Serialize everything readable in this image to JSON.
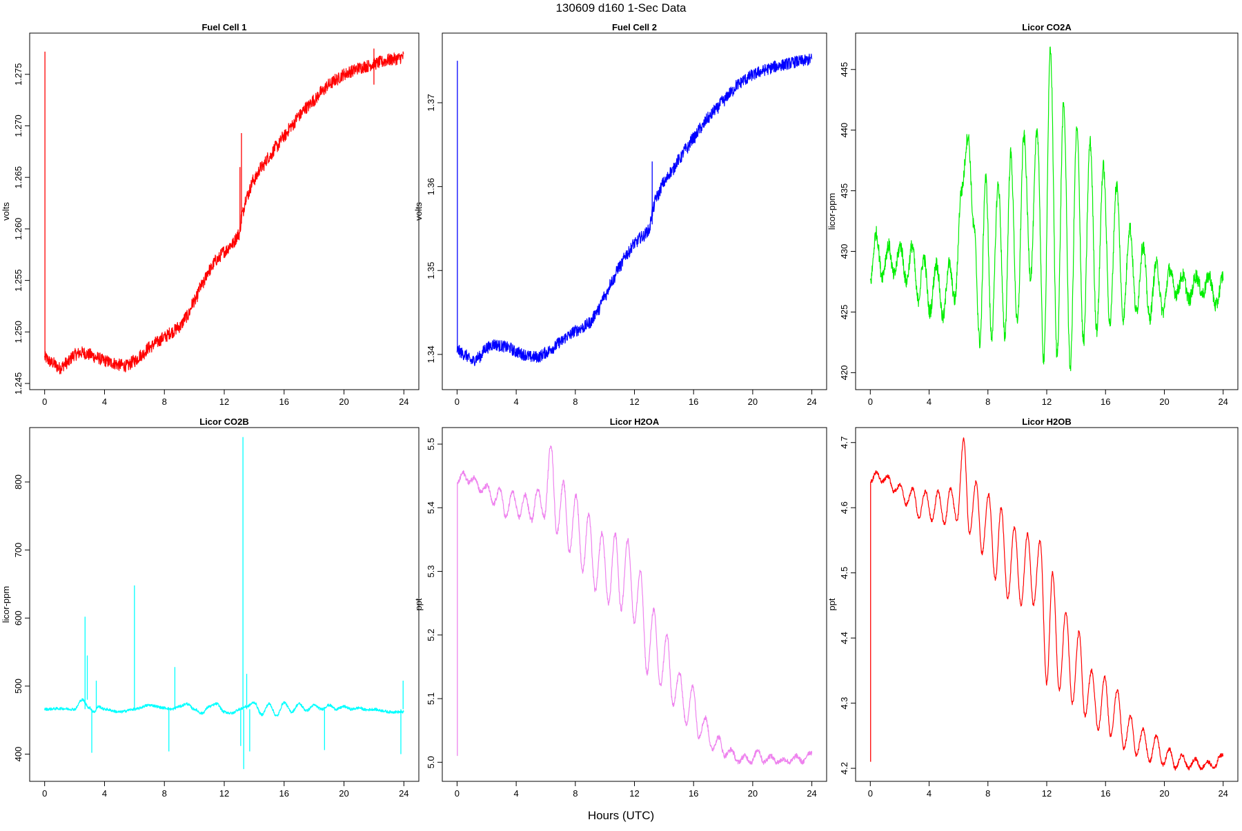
{
  "figure": {
    "title": "130609   d160   1-Sec Data",
    "xlabel": "Hours (UTC)"
  },
  "chart_data": [
    {
      "type": "line",
      "title": "Fuel Cell 1",
      "ylabel": "volts",
      "color": "#ff0000",
      "xlim": [
        -1.0,
        25.0
      ],
      "ylim": [
        1.2444,
        1.279
      ],
      "xticks": [
        0,
        4,
        8,
        12,
        16,
        20,
        24
      ],
      "yticks": [
        1.245,
        1.25,
        1.255,
        1.26,
        1.265,
        1.27,
        1.275
      ],
      "ytick_labels": [
        "1.245",
        "1.250",
        "1.255",
        "1.260",
        "1.265",
        "1.270",
        "1.275"
      ],
      "noise": 0.0006,
      "x": [
        0,
        0.5,
        1,
        1.5,
        2,
        2.5,
        3,
        3.5,
        4,
        4.5,
        5,
        5.5,
        6,
        6.5,
        7,
        7.5,
        8,
        8.5,
        9,
        9.5,
        10,
        10.5,
        11,
        11.5,
        12,
        12.5,
        13,
        13.2,
        13.5,
        14,
        14.5,
        15,
        15.5,
        16,
        16.5,
        17,
        17.5,
        18,
        18.5,
        19,
        19.5,
        20,
        20.5,
        21,
        21.5,
        22,
        22.5,
        23,
        23.5,
        24
      ],
      "y": [
        1.2475,
        1.247,
        1.2465,
        1.247,
        1.2478,
        1.248,
        1.2478,
        1.2475,
        1.2472,
        1.247,
        1.2468,
        1.2467,
        1.2472,
        1.2478,
        1.2485,
        1.249,
        1.2495,
        1.25,
        1.2505,
        1.2515,
        1.253,
        1.2545,
        1.256,
        1.257,
        1.2578,
        1.2585,
        1.2595,
        1.2615,
        1.2632,
        1.2648,
        1.266,
        1.267,
        1.268,
        1.269,
        1.27,
        1.271,
        1.2718,
        1.2725,
        1.2733,
        1.274,
        1.2745,
        1.275,
        1.2753,
        1.2756,
        1.2758,
        1.276,
        1.2762,
        1.2764,
        1.2765,
        1.2767
      ],
      "spikes": [
        {
          "x": 0.02,
          "y0": 1.2475,
          "y1": 1.2772
        },
        {
          "x": 13.15,
          "y0": 1.2605,
          "y1": 1.2693
        },
        {
          "x": 13.05,
          "y0": 1.26,
          "y1": 1.266
        },
        {
          "x": 22.0,
          "y0": 1.274,
          "y1": 1.2775
        }
      ]
    },
    {
      "type": "line",
      "title": "Fuel Cell 2",
      "ylabel": "volts",
      "color": "#0000ff",
      "xlim": [
        -1.0,
        25.0
      ],
      "ylim": [
        1.3358,
        1.3783
      ],
      "xticks": [
        0,
        4,
        8,
        12,
        16,
        20,
        24
      ],
      "yticks": [
        1.34,
        1.35,
        1.36,
        1.37
      ],
      "ytick_labels": [
        "1.34",
        "1.35",
        "1.36",
        "1.37"
      ],
      "noise": 0.0007,
      "x": [
        0,
        0.5,
        1,
        1.5,
        2,
        2.5,
        3,
        3.5,
        4,
        4.5,
        5,
        5.5,
        6,
        6.5,
        7,
        7.5,
        8,
        8.5,
        9,
        9.5,
        10,
        10.5,
        11,
        11.5,
        12,
        12.5,
        13,
        13.2,
        13.5,
        14,
        14.5,
        15,
        15.5,
        16,
        16.5,
        17,
        17.5,
        18,
        18.5,
        19,
        19.5,
        20,
        20.5,
        21,
        21.5,
        22,
        22.5,
        23,
        23.5,
        24
      ],
      "y": [
        1.3405,
        1.34,
        1.3392,
        1.3397,
        1.3408,
        1.3412,
        1.341,
        1.3408,
        1.3403,
        1.34,
        1.3397,
        1.3397,
        1.3402,
        1.3408,
        1.3415,
        1.3422,
        1.3428,
        1.3432,
        1.3438,
        1.3452,
        1.347,
        1.3488,
        1.3505,
        1.352,
        1.3532,
        1.354,
        1.3548,
        1.357,
        1.3588,
        1.3605,
        1.3618,
        1.3632,
        1.3645,
        1.3658,
        1.367,
        1.3682,
        1.3692,
        1.3702,
        1.3712,
        1.3722,
        1.3728,
        1.3733,
        1.3737,
        1.374,
        1.3743,
        1.3745,
        1.3747,
        1.3749,
        1.375,
        1.3752
      ],
      "spikes": [
        {
          "x": 0.02,
          "y0": 1.3405,
          "y1": 1.375
        },
        {
          "x": 13.2,
          "y0": 1.3555,
          "y1": 1.363
        }
      ]
    },
    {
      "type": "line",
      "title": "Licor CO2A",
      "ylabel": "licor-ppm",
      "color": "#00ee00",
      "xlim": [
        -1.0,
        25.0
      ],
      "ylim": [
        418.6,
        448.0
      ],
      "xticks": [
        0,
        4,
        8,
        12,
        16,
        20,
        24
      ],
      "yticks": [
        420,
        425,
        430,
        435,
        440,
        445
      ],
      "ytick_labels": [
        "420",
        "425",
        "430",
        "435",
        "440",
        "445"
      ],
      "noise": 0.6,
      "x": [
        0,
        0.4,
        0.8,
        1.25,
        1.6,
        2.05,
        2.45,
        2.85,
        3.25,
        3.65,
        4.05,
        4.5,
        4.95,
        5.35,
        5.75,
        6.2,
        6.65,
        7.05,
        7.45,
        7.85,
        8.25,
        8.7,
        9.15,
        9.55,
        10.0,
        10.45,
        10.9,
        11.35,
        11.8,
        12.25,
        12.7,
        13.15,
        13.6,
        14.05,
        14.5,
        14.95,
        15.4,
        15.85,
        16.3,
        16.75,
        17.2,
        17.65,
        18.1,
        18.55,
        19.0,
        19.45,
        19.9,
        20.35,
        20.8,
        21.25,
        21.7,
        22.15,
        22.6,
        23.05,
        23.5,
        24.0
      ],
      "y": [
        427.5,
        431.5,
        428.0,
        430.5,
        428.0,
        430.5,
        427.5,
        430.5,
        426.0,
        429.5,
        425.0,
        429.0,
        424.5,
        429.0,
        426.0,
        435.0,
        439.5,
        432.0,
        422.5,
        436.0,
        423.0,
        435.5,
        423.0,
        438.0,
        424.0,
        439.5,
        428.0,
        440.0,
        421.0,
        446.5,
        421.5,
        442.0,
        420.5,
        440.0,
        422.5,
        439.0,
        423.5,
        437.0,
        424.0,
        435.5,
        424.5,
        432.0,
        425.0,
        430.5,
        424.5,
        429.0,
        425.0,
        428.5,
        426.5,
        428.0,
        426.0,
        428.0,
        426.5,
        428.0,
        425.5,
        428.0
      ]
    },
    {
      "type": "line",
      "title": "Licor CO2B",
      "ylabel": "licor-ppm",
      "color": "#00ffff",
      "xlim": [
        -1.0,
        25.0
      ],
      "ylim": [
        360,
        880
      ],
      "xticks": [
        0,
        4,
        8,
        12,
        16,
        20,
        24
      ],
      "yticks": [
        400,
        500,
        600,
        700,
        800
      ],
      "ytick_labels": [
        "400",
        "500",
        "600",
        "700",
        "800"
      ],
      "noise": 2,
      "x": [
        0,
        1.0,
        2.0,
        2.5,
        3.0,
        3.3,
        3.6,
        4.0,
        5.0,
        6.0,
        7.0,
        8.0,
        8.5,
        9.0,
        9.5,
        10.0,
        10.5,
        11.0,
        11.5,
        12.0,
        12.5,
        13.0,
        13.5,
        14.0,
        14.5,
        15.0,
        15.5,
        16.0,
        16.5,
        17.0,
        17.5,
        18.0,
        18.5,
        19.0,
        19.5,
        20.0,
        20.5,
        21.0,
        21.5,
        22.0,
        22.5,
        23.0,
        23.5,
        24.0
      ],
      "y": [
        466,
        467,
        466,
        480,
        468,
        462,
        470,
        466,
        462,
        466,
        472,
        468,
        466,
        470,
        474,
        466,
        460,
        470,
        474,
        462,
        460,
        466,
        470,
        476,
        458,
        474,
        456,
        476,
        462,
        474,
        464,
        472,
        466,
        472,
        466,
        470,
        466,
        468,
        465,
        466,
        464,
        462,
        462,
        462
      ],
      "spikes": [
        {
          "x": 2.7,
          "y0": 466,
          "y1": 602
        },
        {
          "x": 2.85,
          "y0": 480,
          "y1": 545
        },
        {
          "x": 3.15,
          "y0": 466,
          "y1": 402
        },
        {
          "x": 3.45,
          "y0": 466,
          "y1": 508
        },
        {
          "x": 6.0,
          "y0": 466,
          "y1": 648
        },
        {
          "x": 8.3,
          "y0": 466,
          "y1": 404
        },
        {
          "x": 8.7,
          "y0": 466,
          "y1": 528
        },
        {
          "x": 13.25,
          "y0": 466,
          "y1": 866
        },
        {
          "x": 13.3,
          "y0": 466,
          "y1": 378
        },
        {
          "x": 13.1,
          "y0": 466,
          "y1": 412
        },
        {
          "x": 13.5,
          "y0": 466,
          "y1": 518
        },
        {
          "x": 13.7,
          "y0": 466,
          "y1": 404
        },
        {
          "x": 18.7,
          "y0": 466,
          "y1": 406
        },
        {
          "x": 23.8,
          "y0": 466,
          "y1": 400
        },
        {
          "x": 23.95,
          "y0": 466,
          "y1": 508
        }
      ]
    },
    {
      "type": "line",
      "title": "Licor H2OA",
      "ylabel": "ppt",
      "color": "#ee82ee",
      "xlim": [
        -1.0,
        25.0
      ],
      "ylim": [
        4.97,
        5.526
      ],
      "xticks": [
        0,
        4,
        8,
        12,
        16,
        20,
        24
      ],
      "yticks": [
        5.0,
        5.1,
        5.2,
        5.3,
        5.4,
        5.5
      ],
      "ytick_labels": [
        "5.0",
        "5.1",
        "5.2",
        "5.3",
        "5.4",
        "5.5"
      ],
      "noise": 0.004,
      "x": [
        0.05,
        0.4,
        0.8,
        1.2,
        1.6,
        2.05,
        2.45,
        2.9,
        3.3,
        3.75,
        4.2,
        4.6,
        5.05,
        5.45,
        5.9,
        6.35,
        6.75,
        7.2,
        7.6,
        8.05,
        8.5,
        8.9,
        9.35,
        9.8,
        10.25,
        10.7,
        11.1,
        11.55,
        12.0,
        12.4,
        12.85,
        13.3,
        13.75,
        14.2,
        14.6,
        15.05,
        15.5,
        15.95,
        16.35,
        16.8,
        17.25,
        17.7,
        18.1,
        18.55,
        19.0,
        19.45,
        19.9,
        20.35,
        20.75,
        21.2,
        21.65,
        22.1,
        22.5,
        22.95,
        23.4,
        23.8,
        24.0
      ],
      "y": [
        5.44,
        5.455,
        5.44,
        5.448,
        5.425,
        5.435,
        5.405,
        5.43,
        5.385,
        5.425,
        5.385,
        5.42,
        5.38,
        5.43,
        5.385,
        5.5,
        5.36,
        5.44,
        5.33,
        5.42,
        5.3,
        5.39,
        5.27,
        5.36,
        5.25,
        5.36,
        5.24,
        5.35,
        5.22,
        5.3,
        5.14,
        5.24,
        5.12,
        5.2,
        5.09,
        5.14,
        5.06,
        5.12,
        5.04,
        5.07,
        5.02,
        5.04,
        5.01,
        5.02,
        5.0,
        5.01,
        5.0,
        5.02,
        5.0,
        5.01,
        5.0,
        5.005,
        5.0,
        5.01,
        5.0,
        5.015,
        5.015
      ],
      "spikes": [
        {
          "x": 0.02,
          "y0": 5.44,
          "y1": 5.01
        }
      ]
    },
    {
      "type": "line",
      "title": "Licor H2OB",
      "ylabel": "ppt",
      "color": "#ff0000",
      "xlim": [
        -1.0,
        25.0
      ],
      "ylim": [
        4.18,
        4.723
      ],
      "xticks": [
        0,
        4,
        8,
        12,
        16,
        20,
        24
      ],
      "yticks": [
        4.2,
        4.3,
        4.4,
        4.5,
        4.6,
        4.7
      ],
      "ytick_labels": [
        "4.2",
        "4.3",
        "4.4",
        "4.5",
        "4.6",
        "4.7"
      ],
      "noise": 0.003,
      "x": [
        0.05,
        0.4,
        0.8,
        1.2,
        1.6,
        2.05,
        2.45,
        2.9,
        3.3,
        3.75,
        4.2,
        4.6,
        5.05,
        5.45,
        5.9,
        6.35,
        6.75,
        7.2,
        7.6,
        8.05,
        8.5,
        8.9,
        9.35,
        9.8,
        10.25,
        10.7,
        11.1,
        11.55,
        12.0,
        12.4,
        12.85,
        13.3,
        13.75,
        14.2,
        14.6,
        15.05,
        15.5,
        15.95,
        16.35,
        16.8,
        17.25,
        17.7,
        18.1,
        18.55,
        19.0,
        19.45,
        19.9,
        20.35,
        20.75,
        21.2,
        21.65,
        22.1,
        22.5,
        22.95,
        23.4,
        23.8,
        24.0
      ],
      "y": [
        4.64,
        4.655,
        4.64,
        4.648,
        4.625,
        4.635,
        4.605,
        4.63,
        4.585,
        4.625,
        4.58,
        4.625,
        4.575,
        4.63,
        4.58,
        4.705,
        4.56,
        4.64,
        4.53,
        4.62,
        4.49,
        4.6,
        4.46,
        4.57,
        4.45,
        4.56,
        4.45,
        4.55,
        4.33,
        4.5,
        4.32,
        4.44,
        4.3,
        4.41,
        4.28,
        4.35,
        4.26,
        4.34,
        4.25,
        4.32,
        4.23,
        4.28,
        4.22,
        4.26,
        4.21,
        4.25,
        4.205,
        4.23,
        4.2,
        4.22,
        4.2,
        4.215,
        4.2,
        4.21,
        4.2,
        4.22,
        4.22
      ],
      "spikes": [
        {
          "x": 0.02,
          "y0": 4.64,
          "y1": 4.21
        }
      ]
    }
  ]
}
